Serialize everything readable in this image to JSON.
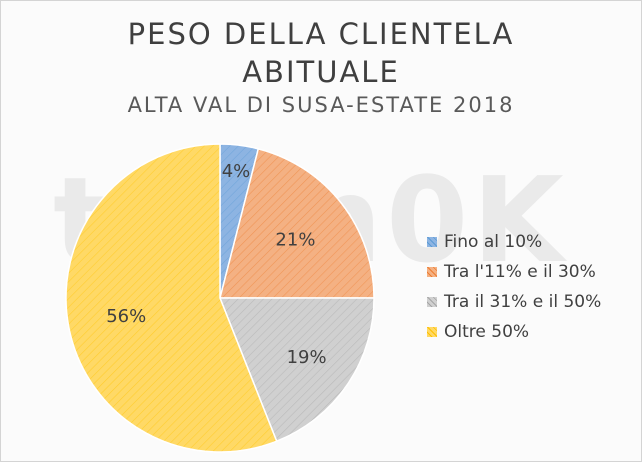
{
  "chart_data": {
    "type": "pie",
    "title_line1": "PESO DELLA CLIENTELA",
    "title_line2": "ABITUALE",
    "subtitle": "ALTA VAL DI SUSA-ESTATE 2018",
    "legend_position": "right",
    "series": [
      {
        "name": "Fino al 10%",
        "value": 4,
        "label": "4%",
        "color": "#8db4e2",
        "color_dark": "#5b9bd5"
      },
      {
        "name": "Tra l'11% e il 30%",
        "value": 21,
        "label": "21%",
        "color": "#f4b183",
        "color_dark": "#ed7d31"
      },
      {
        "name": "Tra il 31% e il 50%",
        "value": 19,
        "label": "19%",
        "color": "#d0d0d0",
        "color_dark": "#a5a5a5"
      },
      {
        "name": "Oltre 50%",
        "value": 56,
        "label": "56%",
        "color": "#ffd966",
        "color_dark": "#ffc000"
      }
    ]
  },
  "watermark": "tram0K"
}
